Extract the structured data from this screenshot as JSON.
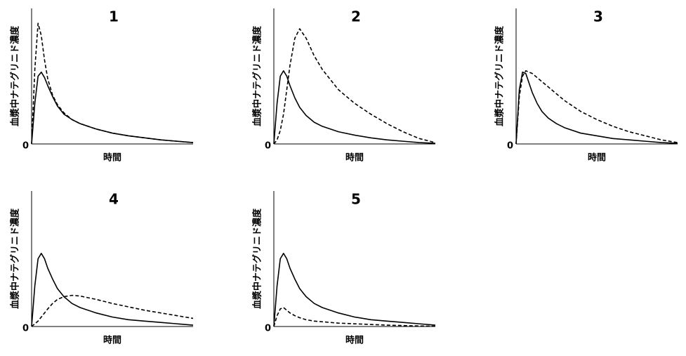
{
  "chart_data": [
    {
      "type": "line",
      "title": "1",
      "xlabel": "時間",
      "ylabel": "血漿中ナテグリニド濃度",
      "x": [
        0,
        2,
        4,
        6,
        8,
        10,
        13,
        16,
        20,
        25,
        30,
        40,
        50,
        60,
        70,
        80,
        90,
        100
      ],
      "xlim": [
        0,
        100
      ],
      "ylim": [
        0,
        100
      ],
      "yticks": [
        0
      ],
      "series": [
        {
          "color": "#000000",
          "dash": "solid",
          "values": [
            0,
            30,
            50,
            53,
            49,
            43,
            35,
            28,
            22,
            18,
            15,
            11,
            8,
            6,
            4.5,
            3,
            2,
            1
          ]
        },
        {
          "color": "#000000",
          "dash": "dashed",
          "values": [
            0,
            55,
            89,
            80,
            62,
            48,
            36,
            29,
            23,
            18,
            15,
            11,
            8,
            6,
            4.5,
            3,
            2,
            1
          ]
        }
      ]
    },
    {
      "type": "line",
      "title": "2",
      "xlabel": "時間",
      "ylabel": "血漿中ナテグリニド濃度",
      "x": [
        0,
        2,
        4,
        6,
        8,
        10,
        13,
        16,
        20,
        25,
        30,
        40,
        50,
        60,
        70,
        80,
        90,
        100
      ],
      "xlim": [
        0,
        100
      ],
      "ylim": [
        0,
        100
      ],
      "yticks": [
        0
      ],
      "series": [
        {
          "color": "#000000",
          "dash": "solid",
          "values": [
            0,
            30,
            50,
            54,
            50,
            43,
            34,
            27,
            21,
            16,
            13,
            9,
            6.5,
            4.5,
            3,
            2,
            1,
            0.5
          ]
        },
        {
          "color": "#000000",
          "dash": "dashed",
          "values": [
            0,
            3,
            10,
            22,
            40,
            58,
            78,
            85,
            78,
            65,
            55,
            40,
            30,
            22,
            15,
            9,
            4,
            1
          ]
        }
      ]
    },
    {
      "type": "line",
      "title": "3",
      "xlabel": "時間",
      "ylabel": "血漿中ナテグリニド濃度",
      "x": [
        0,
        2,
        4,
        6,
        8,
        10,
        13,
        16,
        20,
        25,
        30,
        40,
        50,
        60,
        70,
        80,
        90,
        100
      ],
      "xlim": [
        0,
        100
      ],
      "ylim": [
        0,
        100
      ],
      "yticks": [
        0
      ],
      "series": [
        {
          "color": "#000000",
          "dash": "solid",
          "values": [
            0,
            40,
            53,
            52,
            45,
            38,
            30,
            24,
            19,
            15,
            12,
            8,
            6,
            4,
            3,
            2,
            1,
            0.5
          ]
        },
        {
          "color": "#000000",
          "dash": "dashed",
          "values": [
            0,
            35,
            50,
            54,
            53,
            52,
            49,
            46,
            42,
            37,
            32,
            24,
            18,
            13,
            9,
            6,
            3,
            1
          ]
        }
      ]
    },
    {
      "type": "line",
      "title": "4",
      "xlabel": "時間",
      "ylabel": "血漿中ナテグリニド濃度",
      "x": [
        0,
        2,
        4,
        6,
        8,
        10,
        13,
        16,
        20,
        25,
        30,
        40,
        50,
        60,
        70,
        80,
        90,
        100
      ],
      "xlim": [
        0,
        100
      ],
      "ylim": [
        0,
        100
      ],
      "yticks": [
        0
      ],
      "series": [
        {
          "color": "#000000",
          "dash": "solid",
          "values": [
            0,
            30,
            50,
            54,
            50,
            43,
            35,
            28,
            22,
            17,
            14,
            10,
            7,
            5,
            4,
            3,
            2,
            1
          ]
        },
        {
          "color": "#000000",
          "dash": "dashed",
          "values": [
            0,
            2,
            4,
            7,
            10,
            13,
            17,
            20,
            22,
            23,
            22.5,
            20,
            17,
            14.5,
            12,
            10,
            8,
            6
          ]
        }
      ]
    },
    {
      "type": "line",
      "title": "5",
      "xlabel": "時間",
      "ylabel": "血漿中ナテグリニド濃度",
      "x": [
        0,
        2,
        4,
        6,
        8,
        10,
        13,
        16,
        20,
        25,
        30,
        40,
        50,
        60,
        70,
        80,
        90,
        100
      ],
      "xlim": [
        0,
        100
      ],
      "ylim": [
        0,
        100
      ],
      "yticks": [
        0
      ],
      "series": [
        {
          "color": "#000000",
          "dash": "solid",
          "values": [
            0,
            30,
            50,
            54,
            50,
            43,
            35,
            28,
            22,
            17,
            14,
            10,
            7,
            5,
            4,
            3,
            2,
            1
          ]
        },
        {
          "color": "#000000",
          "dash": "dashed",
          "values": [
            0,
            8,
            13,
            14,
            12,
            10,
            8,
            6.5,
            5,
            4,
            3.5,
            2.5,
            2,
            1.5,
            1,
            0.7,
            0.4,
            0.2
          ]
        }
      ]
    }
  ]
}
